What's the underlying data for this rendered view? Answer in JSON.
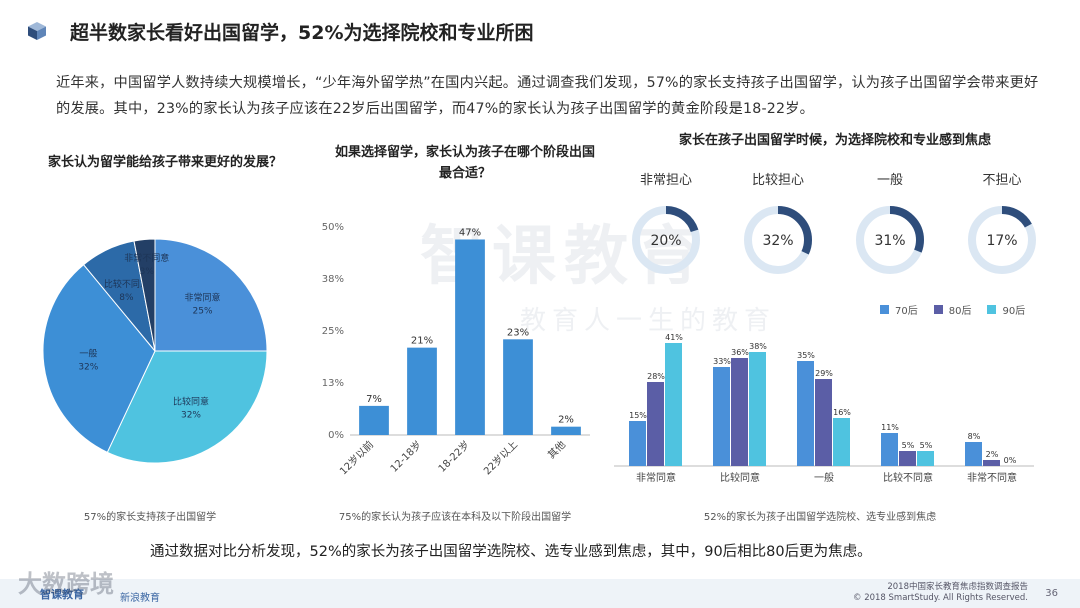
{
  "header": {
    "title": "超半数家长看好出国留学，52%为选择院校和专业所困"
  },
  "intro": "近年来，中国留学人数持续大规模增长，“少年海外留学热”在国内兴起。通过调查我们发现，57%的家长支持孩子出国留学，认为孩子出国留学会带来更好的发展。其中，23%的家长认为孩子应该在22岁后出国留学，而47%的家长认为孩子出国留学的黄金阶段是18-22岁。",
  "summary": "通过数据对比分析发现，52%的家长为孩子出国留学选院校、选专业感到焦虑，其中，90后相比80后更为焦虑。",
  "footer": {
    "brand_cn": "智课教育",
    "brand_sub": "新浪教育",
    "report": "2018中国家长教育焦虑指数调查报告",
    "copyright": "© 2018 SmartStudy. All Rights Reserved.",
    "page": "36",
    "watermark_brand": "大数跨境"
  },
  "watermark": {
    "main": "智课教育",
    "slogan": "教育人一生的教育"
  },
  "colors": {
    "accent": "#2e4d7b",
    "c70": "#4a90d9",
    "c80": "#5b5ea6",
    "c90": "#4fc3e0",
    "donut_track": "#dbe7f3"
  },
  "chart_data": [
    {
      "type": "pie",
      "title": "家长认为留学能给孩子带来更好的发展？",
      "caption": "57%的家长支持孩子出国留学",
      "categories": [
        "非常同意",
        "比较同意",
        "一般",
        "比较不同意",
        "非常不同意"
      ],
      "values": [
        25,
        32,
        32,
        8,
        3
      ],
      "value_labels": [
        "25%",
        "32%",
        "32%",
        "8%",
        "3%"
      ],
      "colors": [
        "#4a90d9",
        "#4fc3e0",
        "#3d8fd6",
        "#2c6aa8",
        "#233f66"
      ]
    },
    {
      "type": "bar",
      "title": "如果选择留学，家长认为孩子在哪个阶段出国最合适？",
      "caption": "75%的家长认为孩子应该在本科及以下阶段出国留学",
      "categories": [
        "12岁以前",
        "12-18岁",
        "18-22岁",
        "22岁以上",
        "其他"
      ],
      "values": [
        7,
        21,
        47,
        23,
        2
      ],
      "value_labels": [
        "7%",
        "21%",
        "47%",
        "23%",
        "2%"
      ],
      "y_ticks": [
        "0%",
        "13%",
        "25%",
        "38%",
        "50%"
      ],
      "ylim": [
        0,
        50
      ]
    },
    {
      "type": "donut",
      "title": "家长在孩子出国留学时候，为选择院校和专业感到焦虑",
      "categories": [
        "非常担心",
        "比较担心",
        "一般",
        "不担心"
      ],
      "values": [
        20,
        32,
        31,
        17
      ],
      "value_labels": [
        "20%",
        "32%",
        "31%",
        "17%"
      ]
    },
    {
      "type": "bar",
      "caption": "52%的家长为孩子出国留学选院校、选专业感到焦虑",
      "categories": [
        "非常同意",
        "比较同意",
        "一般",
        "比较不同意",
        "非常不同意"
      ],
      "series": [
        {
          "name": "70后",
          "values": [
            15,
            33,
            35,
            11,
            8
          ],
          "value_labels": [
            "15%",
            "33%",
            "35%",
            "11%",
            "8%"
          ]
        },
        {
          "name": "80后",
          "values": [
            28,
            36,
            29,
            5,
            2
          ],
          "value_labels": [
            "28%",
            "36%",
            "29%",
            "5%",
            "2%"
          ]
        },
        {
          "name": "90后",
          "values": [
            41,
            38,
            16,
            5,
            0
          ],
          "value_labels": [
            "41%",
            "38%",
            "16%",
            "5%",
            "0%"
          ]
        }
      ],
      "ylim": [
        0,
        45
      ]
    }
  ]
}
